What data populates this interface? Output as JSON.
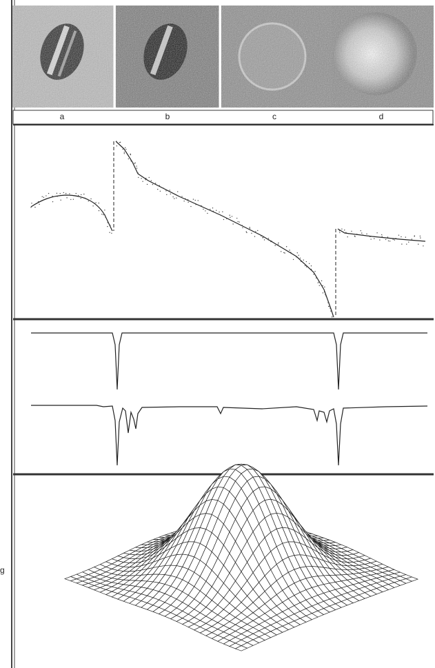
{
  "image_labels": [
    "a",
    "b",
    "c",
    "d"
  ],
  "surface_label": "g"
}
